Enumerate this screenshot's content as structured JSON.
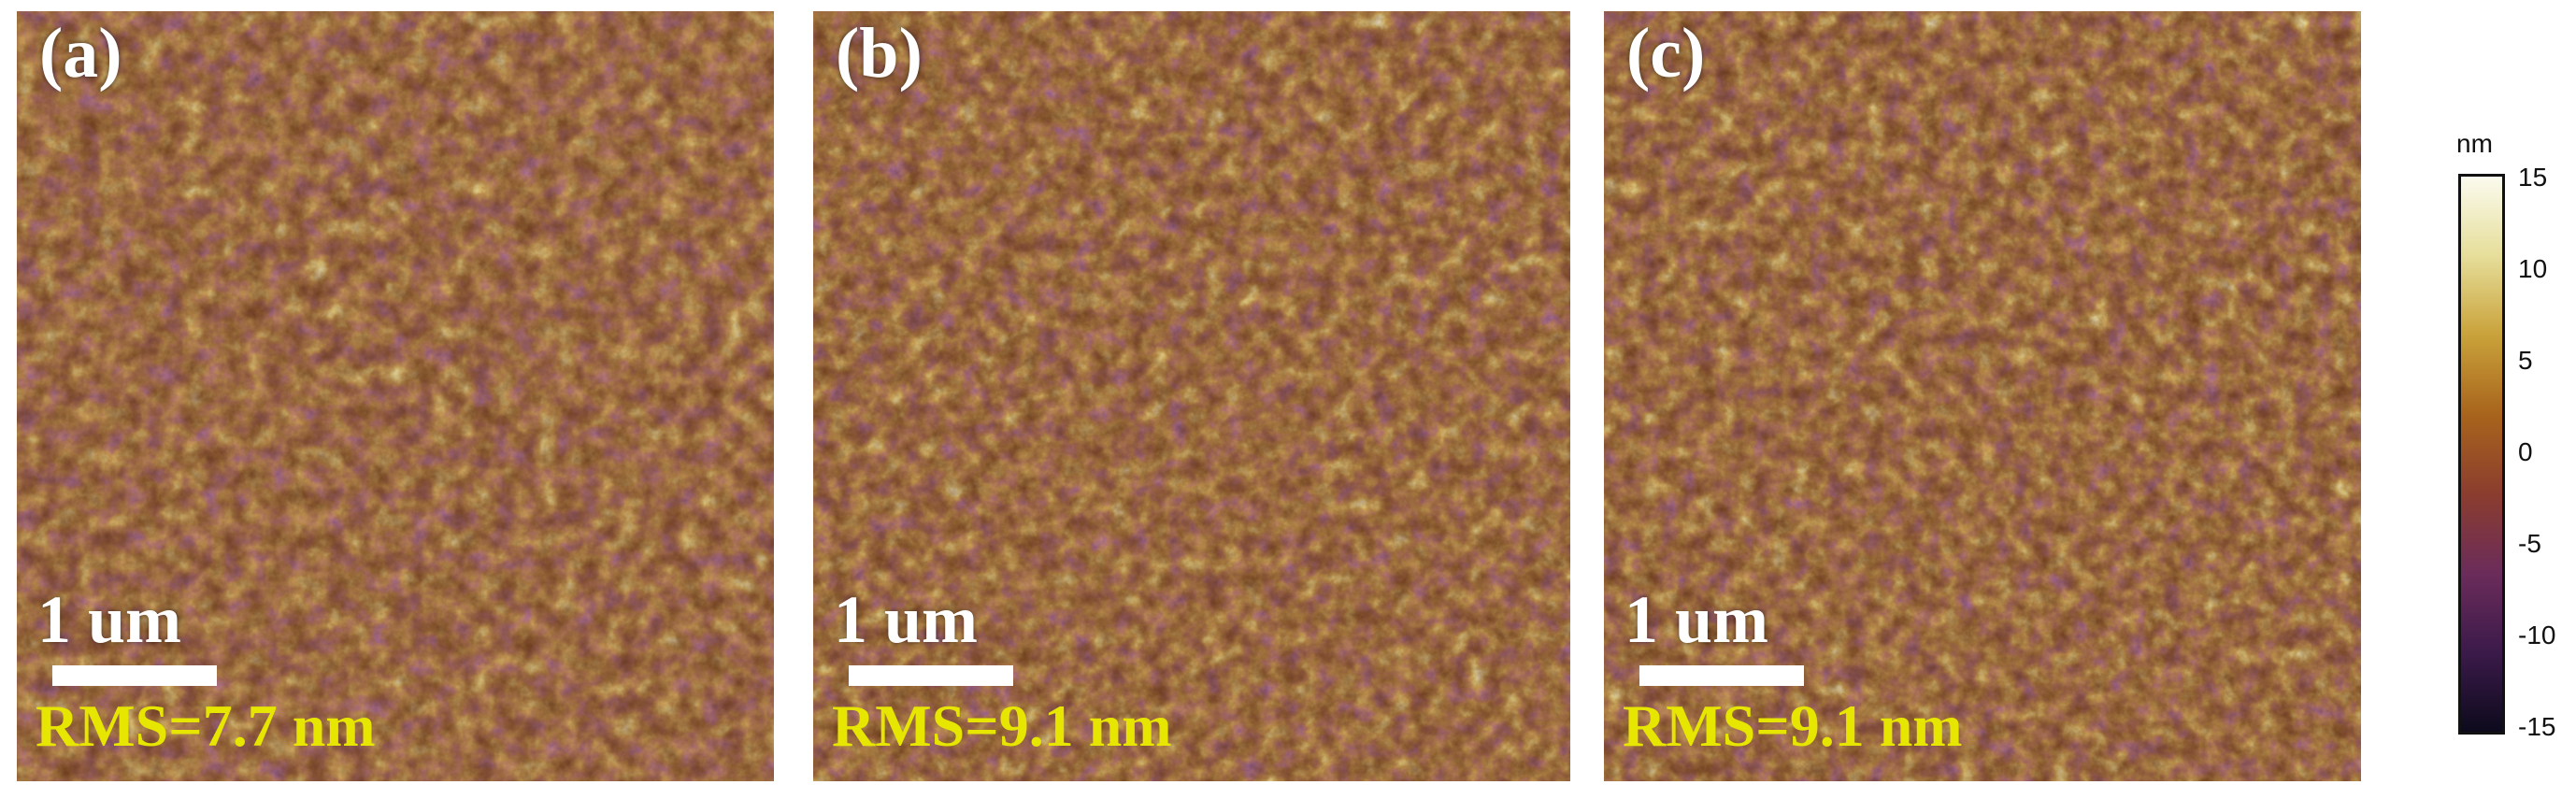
{
  "panels": [
    {
      "label": "(a)",
      "scale": "1 um",
      "rms": "RMS=7.7 nm"
    },
    {
      "label": "(b)",
      "scale": "1 um",
      "rms": "RMS=9.1 nm"
    },
    {
      "label": "(c)",
      "scale": "1 um",
      "rms": "RMS=9.1 nm"
    }
  ],
  "colorbar": {
    "unit": "nm",
    "ticks": [
      "15",
      "10",
      "5",
      "0",
      "-5",
      "-10",
      "-15"
    ],
    "colors": [
      "#0d0a1c",
      "#3b1a4a",
      "#6b2c5a",
      "#8b3d2e",
      "#a8641c",
      "#c9a23a",
      "#e6de9a",
      "#fbfbef"
    ]
  }
}
